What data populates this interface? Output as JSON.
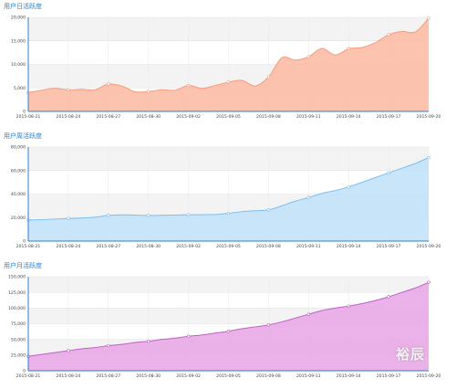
{
  "watermark": "裕辰",
  "chart_data": [
    {
      "type": "area",
      "title": "用户日活跃度",
      "color": "#f79b7c",
      "fill": "#fcb9a1",
      "ylim": [
        0,
        20000
      ],
      "yticks": [
        "0",
        "5,000",
        "10,000",
        "15,000",
        "20,000"
      ],
      "ytick_values": [
        0,
        5000,
        10000,
        15000,
        20000
      ],
      "xticks": [
        "2015-08-21",
        "2015-08-24",
        "2015-08-27",
        "2015-08-30",
        "2015-09-02",
        "2015-09-05",
        "2015-09-08",
        "2015-09-11",
        "2015-09-14",
        "2015-09-17",
        "2015-09-20"
      ],
      "x": [
        "2015-08-21",
        "2015-08-22",
        "2015-08-23",
        "2015-08-24",
        "2015-08-25",
        "2015-08-26",
        "2015-08-27",
        "2015-08-28",
        "2015-08-29",
        "2015-08-30",
        "2015-08-31",
        "2015-09-01",
        "2015-09-02",
        "2015-09-03",
        "2015-09-04",
        "2015-09-05",
        "2015-09-06",
        "2015-09-07",
        "2015-09-08",
        "2015-09-09",
        "2015-09-10",
        "2015-09-11",
        "2015-09-12",
        "2015-09-13",
        "2015-09-14",
        "2015-09-15",
        "2015-09-16",
        "2015-09-17",
        "2015-09-18",
        "2015-09-19",
        "2015-09-20"
      ],
      "values": [
        4000,
        4500,
        4900,
        4600,
        4700,
        4600,
        5800,
        5400,
        4200,
        4200,
        4600,
        4500,
        5500,
        4900,
        5500,
        6200,
        6600,
        5400,
        7300,
        11400,
        10900,
        11600,
        13400,
        12000,
        13300,
        13600,
        14600,
        16300,
        17000,
        16900,
        19800
      ],
      "grid": true
    },
    {
      "type": "area",
      "title": "用户周活跃度",
      "color": "#7cbff0",
      "fill": "#bfe0f8",
      "ylim": [
        0,
        80000
      ],
      "yticks": [
        "0",
        "20,000",
        "40,000",
        "60,000",
        "80,000"
      ],
      "ytick_values": [
        0,
        20000,
        40000,
        60000,
        80000
      ],
      "xticks": [
        "2015-08-21",
        "2015-08-24",
        "2015-08-27",
        "2015-08-30",
        "2015-09-02",
        "2015-09-05",
        "2015-09-08",
        "2015-09-11",
        "2015-09-14",
        "2015-09-17",
        "2015-09-20"
      ],
      "x": [
        "2015-08-21",
        "2015-08-22",
        "2015-08-23",
        "2015-08-24",
        "2015-08-25",
        "2015-08-26",
        "2015-08-27",
        "2015-08-28",
        "2015-08-29",
        "2015-08-30",
        "2015-08-31",
        "2015-09-01",
        "2015-09-02",
        "2015-09-03",
        "2015-09-04",
        "2015-09-05",
        "2015-09-06",
        "2015-09-07",
        "2015-09-08",
        "2015-09-09",
        "2015-09-10",
        "2015-09-11",
        "2015-09-12",
        "2015-09-13",
        "2015-09-14",
        "2015-09-15",
        "2015-09-16",
        "2015-09-17",
        "2015-09-18",
        "2015-09-19",
        "2015-09-20"
      ],
      "values": [
        18000,
        18300,
        18700,
        19200,
        19600,
        20300,
        21800,
        22300,
        22100,
        21800,
        21900,
        22100,
        22400,
        22500,
        22600,
        23600,
        25000,
        25800,
        26500,
        30000,
        34000,
        37000,
        40500,
        43000,
        46000,
        50000,
        54000,
        58000,
        62000,
        66000,
        71000
      ],
      "grid": true
    },
    {
      "type": "area",
      "title": "用户月活跃度",
      "color": "#c060c8",
      "fill": "#e6a5e4",
      "ylim": [
        0,
        150000
      ],
      "yticks": [
        "0",
        "25,000",
        "50,000",
        "75,000",
        "100,000",
        "125,000",
        "150,000"
      ],
      "ytick_values": [
        0,
        25000,
        50000,
        75000,
        100000,
        125000,
        150000
      ],
      "xticks": [
        "2015-08-21",
        "2015-08-24",
        "2015-08-27",
        "2015-08-30",
        "2015-09-02",
        "2015-09-05",
        "2015-09-08",
        "2015-09-11",
        "2015-09-14",
        "2015-09-17",
        "2015-09-20"
      ],
      "x": [
        "2015-08-21",
        "2015-08-22",
        "2015-08-23",
        "2015-08-24",
        "2015-08-25",
        "2015-08-26",
        "2015-08-27",
        "2015-08-28",
        "2015-08-29",
        "2015-08-30",
        "2015-08-31",
        "2015-09-01",
        "2015-09-02",
        "2015-09-03",
        "2015-09-04",
        "2015-09-05",
        "2015-09-06",
        "2015-09-07",
        "2015-09-08",
        "2015-09-09",
        "2015-09-10",
        "2015-09-11",
        "2015-09-12",
        "2015-09-13",
        "2015-09-14",
        "2015-09-15",
        "2015-09-16",
        "2015-09-17",
        "2015-09-18",
        "2015-09-19",
        "2015-09-20"
      ],
      "values": [
        23000,
        26000,
        29000,
        32000,
        35000,
        37000,
        40000,
        42000,
        45000,
        47000,
        50000,
        52000,
        55000,
        57000,
        60000,
        63000,
        67000,
        70000,
        73000,
        78000,
        84000,
        90000,
        96000,
        100000,
        103000,
        107000,
        112000,
        118000,
        125000,
        132000,
        141000
      ],
      "grid": true
    }
  ]
}
